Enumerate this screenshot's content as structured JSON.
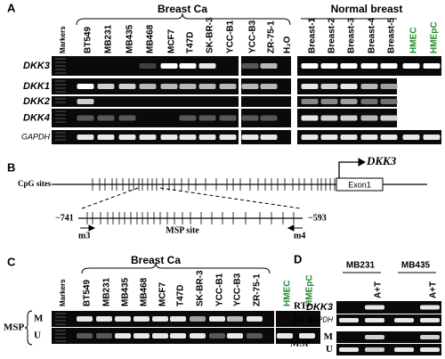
{
  "panel_a": {
    "label": "A",
    "groups": [
      "Breast Ca",
      "Normal breast"
    ],
    "lanes": [
      "Markers",
      "BT549",
      "MB231",
      "MB435",
      "MB468",
      "MCF7",
      "T47D",
      "SK-BR-3",
      "YCC-B1",
      "YCC-B3",
      "ZR-75-1",
      "H₂O",
      "Breast-1",
      "Breast-2",
      "Breast-3",
      "Breast-4",
      "Breast-5",
      "HMEC",
      "HMEpC"
    ],
    "rows": [
      "DKK3",
      "DKK1",
      "DKK2",
      "DKK4",
      "GAPDH"
    ]
  },
  "panel_b": {
    "label": "B",
    "cpg_label": "CpG sites",
    "gene": "DKK3",
    "exon": "Exon1",
    "start": "−741",
    "end": "−593",
    "site": "MSP site",
    "primer_left": "m3",
    "primer_right": "m4"
  },
  "panel_c": {
    "label": "C",
    "group": "Breast Ca",
    "lanes": [
      "Markers",
      "BT549",
      "MB231",
      "MB435",
      "MB468",
      "MCF7",
      "T47D",
      "SK-BR-3",
      "YCC-B1",
      "YCC-B3",
      "ZR-75-1",
      "HMEC",
      "HMEpC"
    ],
    "method": "MSP",
    "rows": [
      "M",
      "U"
    ]
  },
  "panel_d": {
    "label": "D",
    "cells": [
      "MB231",
      "MB435"
    ],
    "treatment": [
      "A+T",
      "A+T"
    ],
    "rt_label": [
      "RT-",
      "PCR"
    ],
    "rt_rows": [
      "DKK3",
      "GAPDH"
    ],
    "method": "MSP",
    "msp_rows": [
      "M",
      "U"
    ]
  }
}
